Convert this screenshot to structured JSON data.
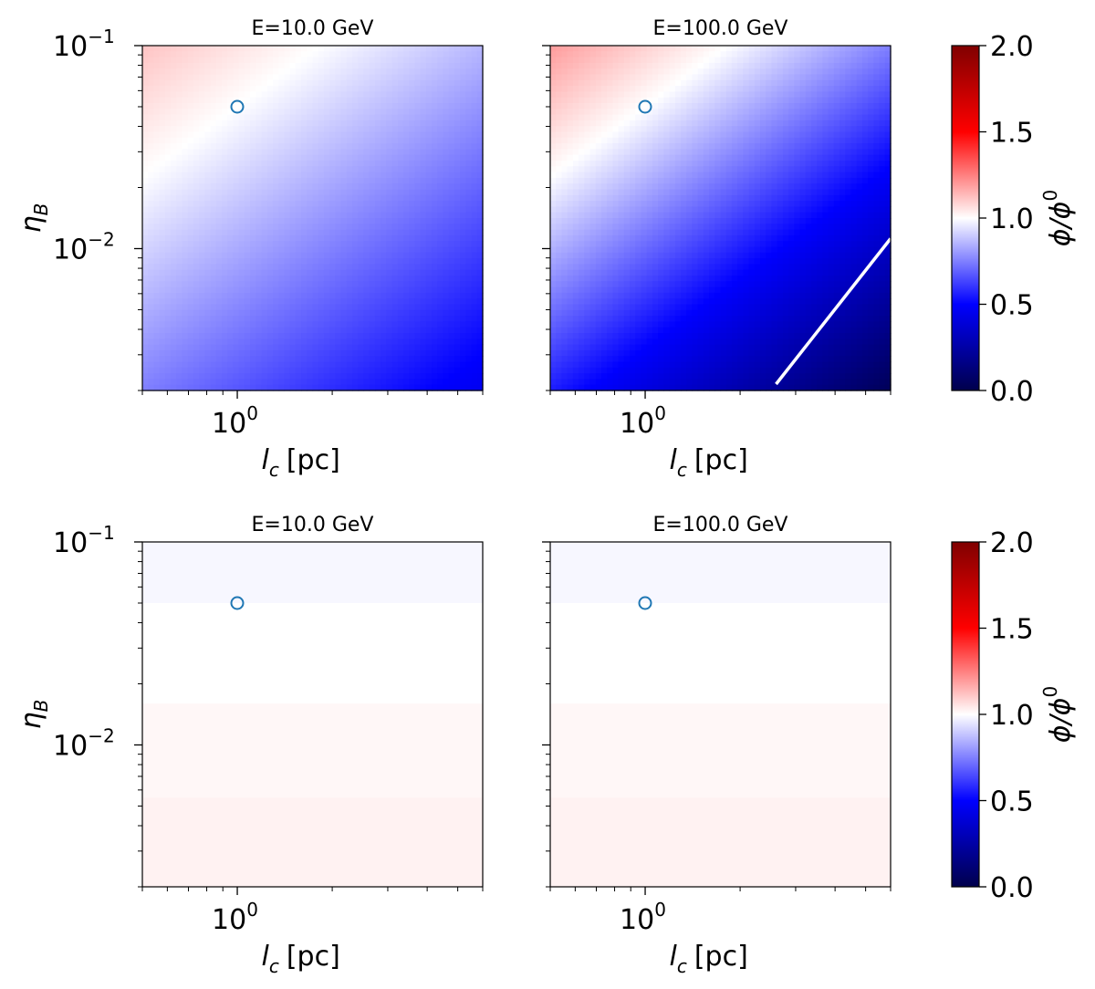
{
  "colors": {
    "circle": "#1f77b4",
    "contour": "#ffffff",
    "frame": "#000000"
  },
  "colorbar": {
    "label": "ϕ/ϕ",
    "label_sup": "0",
    "range": [
      0.0,
      2.0
    ],
    "ticks": [
      "2.0",
      "1.5",
      "1.0",
      "0.5",
      "0.0"
    ],
    "colormap": "seismic"
  },
  "chart_data": [
    {
      "type": "heatmap",
      "title": "E=10.0 GeV",
      "xlabel": "l",
      "xlabel_sub": "c",
      "xlabel_unit": "[pc]",
      "ylabel": "η",
      "ylabel_sub": "B",
      "xscale": "log",
      "yscale": "log",
      "xlim": [
        0.5,
        6.0
      ],
      "ylim": [
        0.002,
        0.1
      ],
      "xticks": [
        {
          "base": "10",
          "exp": "0",
          "value": 1
        }
      ],
      "yticks": [
        {
          "base": "10",
          "exp": "−1",
          "value": 0.1
        },
        {
          "base": "10",
          "exp": "−2",
          "value": 0.01
        }
      ],
      "field": {
        "model": "ratio",
        "a": 0.18,
        "b": -0.28,
        "c": 0.0,
        "vmin_at_corner": 0.55
      },
      "marker": {
        "shape": "open-circle",
        "x": 1.0,
        "y": 0.05
      },
      "contour": null
    },
    {
      "type": "heatmap",
      "title": "E=100.0 GeV",
      "xlabel": "l",
      "xlabel_sub": "c",
      "xlabel_unit": "[pc]",
      "ylabel": "",
      "ylabel_sub": "",
      "xscale": "log",
      "yscale": "log",
      "xlim": [
        0.5,
        6.0
      ],
      "ylim": [
        0.002,
        0.1
      ],
      "xticks": [
        {
          "base": "10",
          "exp": "0",
          "value": 1
        }
      ],
      "yticks": [],
      "field": {
        "model": "ratio",
        "a": 0.3,
        "b": -0.56,
        "c": 0.0,
        "vmin_at_corner": 0.2
      },
      "marker": {
        "shape": "open-circle",
        "x": 1.0,
        "y": 0.05
      },
      "contour": {
        "level": 0.5,
        "points": [
          [
            2.6,
            0.00215
          ],
          [
            6.0,
            0.0112
          ]
        ]
      }
    },
    {
      "type": "heatmap",
      "title": "E=10.0 GeV",
      "xlabel": "l",
      "xlabel_sub": "c",
      "xlabel_unit": "[pc]",
      "ylabel": "η",
      "ylabel_sub": "B",
      "xscale": "log",
      "yscale": "log",
      "xlim": [
        0.5,
        6.0
      ],
      "ylim": [
        0.002,
        0.1
      ],
      "xticks": [
        {
          "base": "10",
          "exp": "0",
          "value": 1
        }
      ],
      "yticks": [
        {
          "base": "10",
          "exp": "−1",
          "value": 0.1
        },
        {
          "base": "10",
          "exp": "−2",
          "value": 0.01
        }
      ],
      "field": {
        "model": "bands",
        "bands": [
          [
            0.05,
            0.1,
            0.985
          ],
          [
            0.016,
            0.05,
            1.0
          ],
          [
            0.0055,
            0.016,
            1.015
          ],
          [
            0.002,
            0.0055,
            1.025
          ]
        ]
      },
      "marker": {
        "shape": "open-circle",
        "x": 1.0,
        "y": 0.05
      },
      "contour": null
    },
    {
      "type": "heatmap",
      "title": "E=100.0 GeV",
      "xlabel": "l",
      "xlabel_sub": "c",
      "xlabel_unit": "[pc]",
      "ylabel": "",
      "ylabel_sub": "",
      "xscale": "log",
      "yscale": "log",
      "xlim": [
        0.5,
        6.0
      ],
      "ylim": [
        0.002,
        0.1
      ],
      "xticks": [
        {
          "base": "10",
          "exp": "0",
          "value": 1
        }
      ],
      "yticks": [],
      "field": {
        "model": "bands",
        "bands": [
          [
            0.05,
            0.1,
            0.985
          ],
          [
            0.016,
            0.05,
            1.0
          ],
          [
            0.0055,
            0.016,
            1.015
          ],
          [
            0.002,
            0.0055,
            1.025
          ]
        ]
      },
      "marker": {
        "shape": "open-circle",
        "x": 1.0,
        "y": 0.05
      },
      "contour": null
    }
  ]
}
